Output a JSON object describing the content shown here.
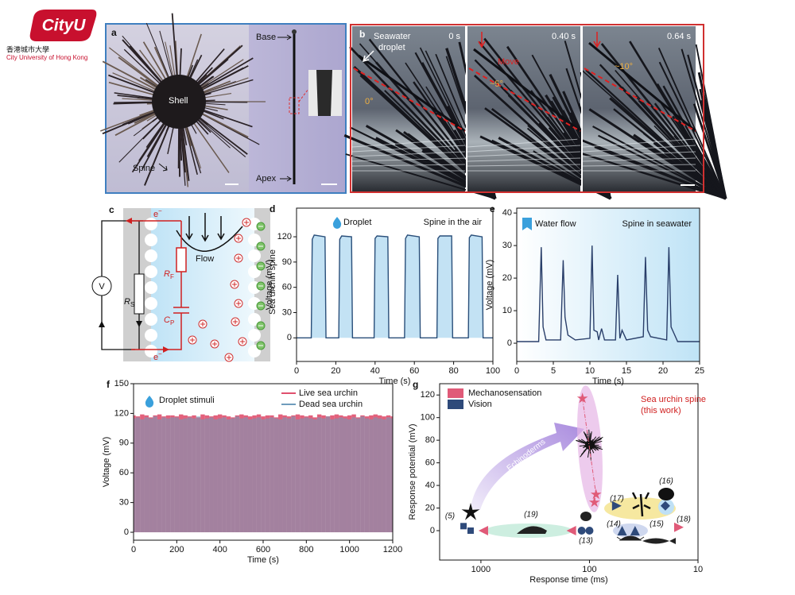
{
  "logo": {
    "name": "CityU",
    "chinese": "香港城市大學",
    "english": "City University of Hong Kong"
  },
  "panel_a": {
    "label": "a",
    "shell": "Shell",
    "spine": "Spine",
    "base": "Base",
    "apex": "Apex"
  },
  "panel_b": {
    "label": "b",
    "droplet": [
      "Seawater",
      "droplet"
    ],
    "frames": [
      {
        "time": "0 s",
        "angle": "0°"
      },
      {
        "time": "0.40 s",
        "angle": "~5°",
        "note": "Move"
      },
      {
        "time": "0.64 s",
        "angle": "~10°"
      }
    ]
  },
  "panel_c": {
    "label": "c",
    "electron": "e",
    "electron_sup": "−",
    "voltmeter": "V",
    "rs": "R",
    "rs_sub": "S",
    "rf": "R",
    "rf_sub": "F",
    "cp": "C",
    "cp_sub": "P",
    "flow": "Flow",
    "side": "Sea urchin spine"
  },
  "chart_data": [
    {
      "panel": "d",
      "type": "line",
      "annotations": [
        "Droplet",
        "Spine in the air"
      ],
      "xlabel": "Time (s)",
      "ylabel": "Voltage (mV)",
      "color": "#2a4f7a",
      "fill": "#a9d6f0",
      "x": [
        0,
        7.5,
        8,
        9,
        14.5,
        15,
        21.5,
        22,
        23,
        28,
        28.5,
        39.5,
        40,
        41,
        46.5,
        47,
        55,
        55.5,
        56.5,
        62.5,
        63,
        71.5,
        72,
        73,
        79,
        79.5,
        87.5,
        88,
        89,
        94.5,
        95,
        100
      ],
      "values": [
        0,
        0,
        117,
        122,
        120,
        0,
        0,
        117,
        121,
        120,
        0,
        0,
        118,
        121,
        120,
        0,
        0,
        118,
        122,
        120,
        0,
        0,
        118,
        121,
        121,
        0,
        0,
        119,
        122,
        120,
        0,
        0
      ],
      "xlim": [
        0,
        100
      ],
      "ylim": [
        -28,
        154
      ],
      "xticks": [
        0,
        20,
        40,
        60,
        80,
        100
      ],
      "yticks": [
        0,
        30,
        60,
        90,
        120
      ]
    },
    {
      "panel": "e",
      "type": "line",
      "annotations": [
        "Water flow",
        "Spine in seawater"
      ],
      "xlabel": "Time (s)",
      "ylabel": "Voltage (mV)",
      "color": "#2a3f6a",
      "x": [
        0,
        3,
        3.35,
        3.6,
        4,
        6,
        6.35,
        6.6,
        7,
        8,
        10,
        10.3,
        10.55,
        11,
        11.2,
        11.6,
        12,
        13.5,
        13.8,
        14.1,
        14.4,
        15,
        17.3,
        17.6,
        17.9,
        18.3,
        20.5,
        20.8,
        21.1,
        21.5,
        22,
        25
      ],
      "values": [
        0.5,
        0.5,
        29.5,
        5,
        1,
        1,
        25.5,
        8,
        2.5,
        1,
        1.5,
        30,
        4,
        3.5,
        1,
        4.5,
        1,
        1,
        21,
        1.5,
        4,
        1,
        2,
        26.5,
        4,
        2,
        1,
        29.5,
        5,
        3,
        0.5,
        0.5
      ],
      "xlim": [
        0,
        25
      ],
      "ylim": [
        -5.6,
        41.5
      ],
      "xticks": [
        0,
        5,
        10,
        15,
        20,
        25
      ],
      "yticks": [
        0,
        10,
        20,
        30,
        40
      ]
    },
    {
      "panel": "f",
      "type": "bar",
      "annotations": [
        "Droplet stimuli"
      ],
      "legend": "top-right",
      "xlabel": "Time (s)",
      "ylabel": "Voltage (mV)",
      "x": [
        0,
        20,
        40,
        60,
        80,
        100,
        120,
        140,
        160,
        180,
        200,
        220,
        240,
        260,
        280,
        300,
        320,
        340,
        360,
        380,
        400,
        420,
        440,
        460,
        480,
        500,
        520,
        540,
        560,
        580,
        600,
        620,
        640,
        660,
        680,
        700,
        720,
        740,
        760,
        780,
        800,
        820,
        840,
        860,
        880,
        900,
        920,
        940,
        960,
        980,
        1000,
        1020,
        1040,
        1060,
        1080,
        1100,
        1120,
        1140,
        1160,
        1180,
        1200
      ],
      "series": [
        {
          "name": "Live sea urchin",
          "color": "#e0506e",
          "values": [
            118,
            117,
            119,
            118,
            116,
            118,
            119,
            117,
            118,
            118,
            117,
            119,
            118,
            117,
            118,
            116,
            119,
            118,
            117,
            118,
            119,
            118,
            117,
            116,
            118,
            119,
            118,
            117,
            118,
            119,
            117,
            118,
            118,
            116,
            119,
            118,
            117,
            118,
            119,
            118,
            117,
            118,
            116,
            119,
            118,
            117,
            118,
            119,
            118,
            117,
            118,
            119,
            116,
            118,
            117,
            118,
            119,
            118,
            117,
            118,
            117
          ]
        },
        {
          "name": "Dead sea urchin",
          "color": "#6f9cbc",
          "values": [
            115,
            116,
            114,
            116,
            115,
            117,
            114,
            116,
            115,
            116,
            116,
            114,
            115,
            116,
            115,
            117,
            114,
            115,
            116,
            114,
            115,
            116,
            114,
            115,
            117,
            115,
            116,
            114,
            115,
            116,
            114,
            115,
            116,
            115,
            114,
            116,
            115,
            117,
            114,
            115,
            116,
            115,
            114,
            116,
            115,
            117,
            114,
            115,
            116,
            115,
            114,
            116,
            115,
            117,
            115,
            114,
            116,
            115,
            114,
            116,
            115
          ]
        }
      ],
      "xlim": [
        0,
        1200
      ],
      "ylim": [
        -8,
        150
      ],
      "xticks": [
        0,
        200,
        400,
        600,
        800,
        1000,
        1200
      ],
      "yticks": [
        0,
        30,
        60,
        90,
        120,
        150
      ]
    },
    {
      "panel": "g",
      "type": "scatter",
      "xscale": "log",
      "legend": "top-left",
      "annotations": [
        "(5)",
        "(19)",
        "(13)",
        "(17)",
        "(16)",
        "(14)",
        "(15)",
        "(18)",
        "Echinoderms",
        "Sea urchin spine",
        "(this work)"
      ],
      "xlabel": "Response time (ms)",
      "ylabel": "Response potential (mV)",
      "series": [
        {
          "name": "Mechanosensation",
          "color": "#e05a78",
          "x": [
            116,
            87,
            90,
            950,
            147,
            15
          ],
          "values": [
            117,
            32,
            25,
            0,
            0,
            3
          ],
          "markers": [
            "star",
            "star",
            "star",
            "triangle-left",
            "triangle-left",
            "triangle-right"
          ]
        },
        {
          "name": "Vision",
          "color": "#2e4a7a",
          "x": [
            1446,
            1244,
            118,
            100,
            56,
            20,
            50,
            38
          ],
          "values": [
            4,
            0,
            0,
            0,
            22,
            22,
            0,
            0
          ],
          "markers": [
            "square",
            "square",
            "circle",
            "circle",
            "triangle-right",
            "diamond",
            "triangle-up",
            "triangle-up"
          ]
        }
      ],
      "xlim": [
        2400,
        10
      ],
      "ylim": [
        -26,
        130
      ],
      "xticks": [
        1000,
        100,
        10
      ],
      "yticks": [
        0,
        20,
        40,
        60,
        80,
        100,
        120
      ]
    }
  ]
}
